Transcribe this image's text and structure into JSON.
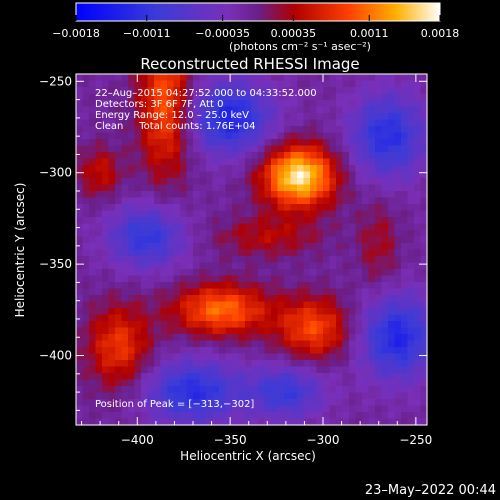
{
  "chart_data": {
    "type": "heatmap",
    "title": "Reconstructed RHESSI Image",
    "xlabel": "Heliocentric X (arcsec)",
    "ylabel": "Heliocentric Y (arcsec)",
    "xlim": [
      -433,
      -244
    ],
    "ylim": [
      -438,
      -246
    ],
    "x_ticks": [
      -400,
      -350,
      -300,
      -250
    ],
    "y_ticks": [
      -400,
      -350,
      -300,
      -250
    ],
    "x_tick_labels": [
      "−400",
      "−350",
      "−300",
      "−250"
    ],
    "y_tick_labels": [
      "−400",
      "−350",
      "−300",
      "−250"
    ],
    "colorbar": {
      "range": [
        -0.0018,
        0.0018
      ],
      "tick_values": [
        -0.0018,
        -0.0011,
        -0.00035,
        0.00035,
        0.0011,
        0.0018
      ],
      "tick_labels": [
        "−0.0018",
        "−0.0011",
        "−0.00035",
        "0.00035",
        "0.0011",
        "0.0018"
      ],
      "unit_label": "(photons cm⁻² s⁻¹ asec⁻²)"
    },
    "annotations": {
      "time_range": "22–Aug–2015 04:27:52.000 to 04:33:52.000",
      "detectors": "Detectors: 3F 6F 7F, Att 0",
      "energy": "Energy Range: 12.0 – 25.0 keV",
      "clean": "Clean     Total counts: 1.76E+04",
      "peak": "Position of Peak = [−313,−302]"
    },
    "sources": [
      {
        "x": -313,
        "y": -302,
        "intensity": 0.0018,
        "sx": 14,
        "sy": 12
      },
      {
        "x": -385,
        "y": -262,
        "intensity": 0.0011,
        "sx": 10,
        "sy": 28
      },
      {
        "x": -355,
        "y": -375,
        "intensity": 0.0012,
        "sx": 18,
        "sy": 10
      },
      {
        "x": -305,
        "y": -385,
        "intensity": 0.001,
        "sx": 14,
        "sy": 12
      },
      {
        "x": -410,
        "y": -395,
        "intensity": 0.0009,
        "sx": 12,
        "sy": 16
      },
      {
        "x": -420,
        "y": -300,
        "intensity": 0.0006,
        "sx": 8,
        "sy": 10
      },
      {
        "x": -330,
        "y": -335,
        "intensity": 0.0005,
        "sx": 20,
        "sy": 8
      },
      {
        "x": -270,
        "y": -340,
        "intensity": 0.0004,
        "sx": 8,
        "sy": 18
      }
    ],
    "negative_regions": [
      {
        "x": -350,
        "y": -270,
        "intensity": -0.0012,
        "sx": 16,
        "sy": 14
      },
      {
        "x": -265,
        "y": -280,
        "intensity": -0.0011,
        "sx": 14,
        "sy": 16
      },
      {
        "x": -395,
        "y": -335,
        "intensity": -0.001,
        "sx": 14,
        "sy": 12
      },
      {
        "x": -260,
        "y": -390,
        "intensity": -0.0012,
        "sx": 14,
        "sy": 16
      },
      {
        "x": -370,
        "y": -420,
        "intensity": -0.0011,
        "sx": 18,
        "sy": 12
      },
      {
        "x": -320,
        "y": -420,
        "intensity": -0.0009,
        "sx": 14,
        "sy": 10
      }
    ]
  },
  "footer": {
    "timestamp": "23–May–2022 00:44"
  }
}
